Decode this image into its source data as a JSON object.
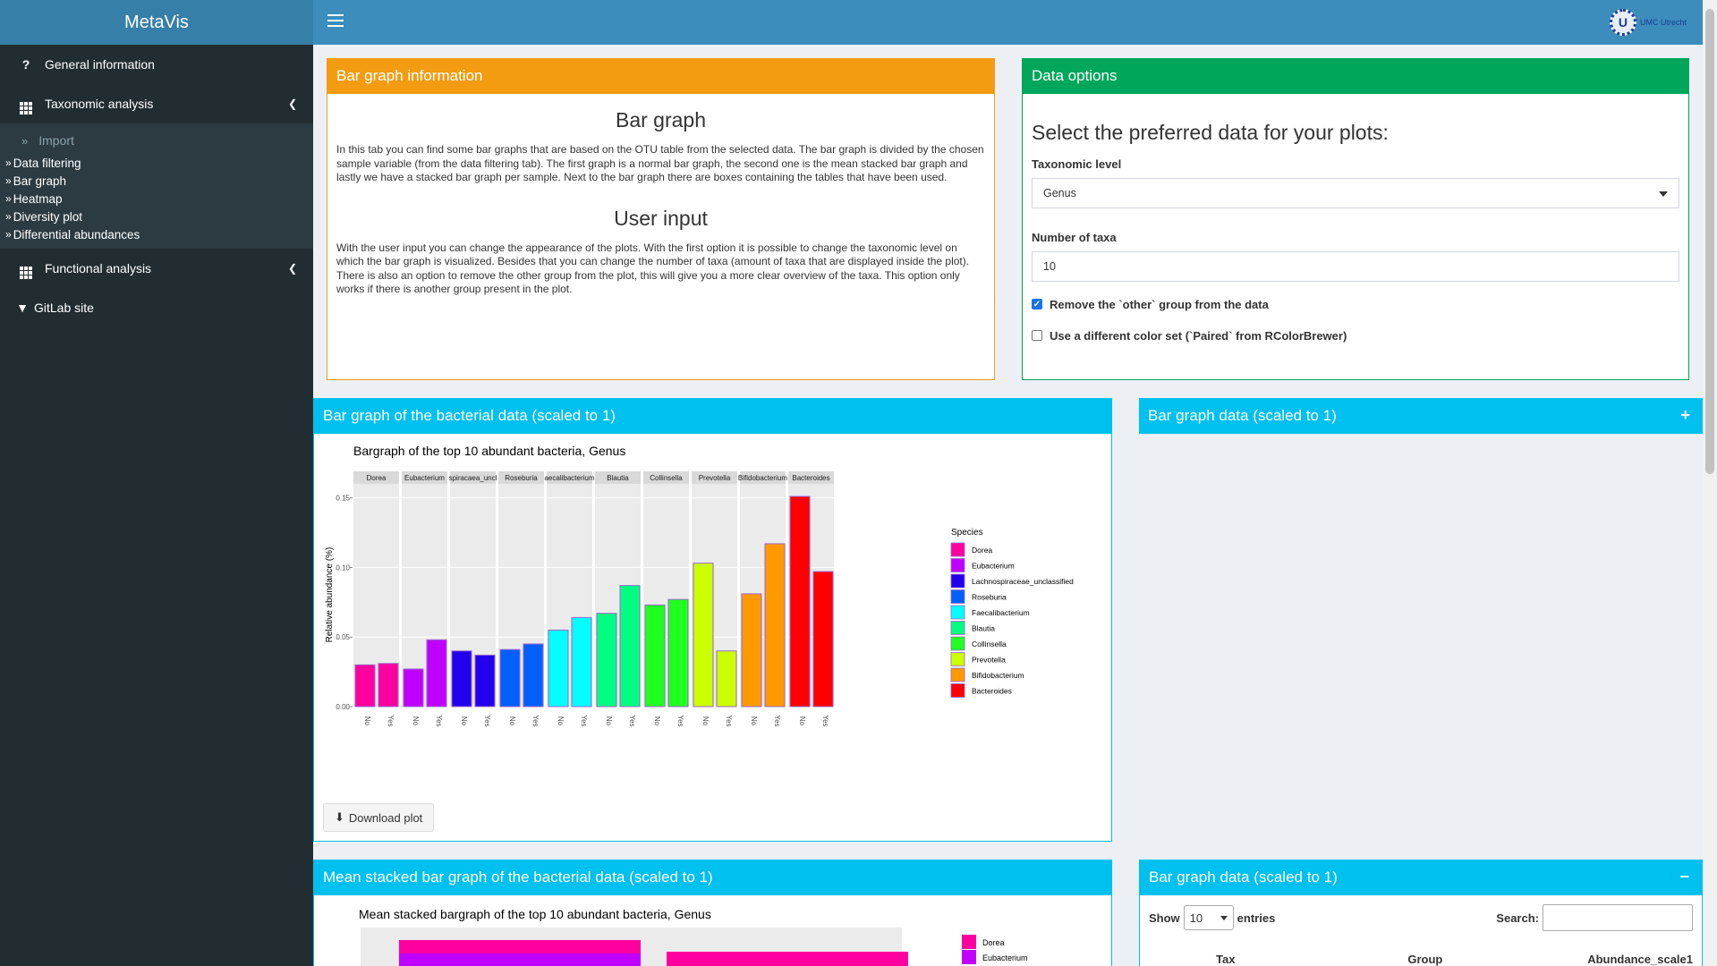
{
  "app": {
    "title": "MetaVis",
    "brand_text": "UMC Utrecht",
    "brand_letter": "U"
  },
  "sidebar": {
    "general": "General information",
    "taxonomic": "Taxonomic analysis",
    "sub_items": [
      "Import",
      "Data filtering",
      "Bar graph",
      "Heatmap",
      "Diversity plot",
      "Differential abundances"
    ],
    "functional": "Functional analysis",
    "gitlab": "GitLab site"
  },
  "info_box": {
    "title": "Bar graph information",
    "h1": "Bar graph",
    "p1": "In this tab you can find some bar graphs that are based on the OTU table from the selected data. The bar graph is divided by the chosen sample variable (from the data filtering tab). The first graph is a normal bar graph, the second one is the mean stacked bar graph and lastly we have a stacked bar graph per sample. Next to the bar graph there are boxes containing the tables that have been used.",
    "h2": "User input",
    "p2": "With the user input you can change the appearance of the plots. With the first option it is possible to change the taxonomic level on which the bar graph is visualized. Besides that you can change the number of taxa (amount of taxa that are displayed inside the plot). There is also an option to remove the other group from the plot, this will give you a more clear overview of the taxa. This option only works if there is another group present in the plot."
  },
  "data_options": {
    "title": "Data options",
    "heading": "Select the preferred data for your plots:",
    "tax_label": "Taxonomic level",
    "tax_value": "Genus",
    "num_label": "Number of taxa",
    "num_value": "10",
    "chk1_label": "Remove the `other` group from the data",
    "chk1_checked": true,
    "chk2_label": "Use a different color set (`Paired` from RColorBrewer)",
    "chk2_checked": false
  },
  "bar_box": {
    "title": "Bar graph of the bacterial data (scaled to 1)",
    "download": "Download plot"
  },
  "bar_data_box1": {
    "title": "Bar graph data (scaled to 1)",
    "tool": "+"
  },
  "mean_box": {
    "title": "Mean stacked bar graph of the bacterial data (scaled to 1)",
    "plot_title": "Mean stacked bargraph of the top 10 abundant bacteria, Genus"
  },
  "bar_data_box2": {
    "title": "Bar graph data (scaled to 1)",
    "tool": "−",
    "show": "Show",
    "entries_value": "10",
    "entries": "entries",
    "search": "Search:",
    "columns": [
      "Tax",
      "Group",
      "Abundance_scale1"
    ]
  },
  "chart_data": {
    "type": "bar",
    "title": "Bargraph of the top 10 abundant bacteria, Genus",
    "ylabel": "Relative abundance (%)",
    "xlabel": "",
    "ylim": [
      0,
      0.16
    ],
    "yticks": [
      "0.00",
      "0.05",
      "0.10",
      "0.15"
    ],
    "ytick_values": [
      0,
      0.05,
      0.1,
      0.15
    ],
    "groups": [
      "No",
      "Yes"
    ],
    "legend_title": "Species",
    "facets": [
      {
        "name": "Dorea",
        "label": "Dorea",
        "color": "#ff00a0",
        "values": [
          0.03,
          0.031
        ]
      },
      {
        "name": "Eubacterium",
        "label": "Eubacterium",
        "color": "#c000ff",
        "values": [
          0.027,
          0.048
        ]
      },
      {
        "name": "Lachnospiraceae_unclassified",
        "label": "spiracaea_uncl",
        "color": "#2200ee",
        "values": [
          0.04,
          0.037
        ]
      },
      {
        "name": "Roseburia",
        "label": "Roseburia",
        "color": "#0060ff",
        "values": [
          0.041,
          0.045
        ]
      },
      {
        "name": "Faecalibacterium",
        "label": "aecalibacterium",
        "color": "#00ffff",
        "values": [
          0.055,
          0.064
        ]
      },
      {
        "name": "Blautia",
        "label": "Blautia",
        "color": "#00ff80",
        "values": [
          0.067,
          0.087
        ]
      },
      {
        "name": "Collinsella",
        "label": "Collinsella",
        "color": "#20ff20",
        "values": [
          0.073,
          0.077
        ]
      },
      {
        "name": "Prevotella",
        "label": "Prevotella",
        "color": "#ccff00",
        "values": [
          0.103,
          0.04
        ]
      },
      {
        "name": "Bifidobacterium",
        "label": "Bifidobacterium",
        "color": "#ff9900",
        "values": [
          0.081,
          0.117
        ]
      },
      {
        "name": "Bacteroides",
        "label": "Bacteroides",
        "color": "#ff0000",
        "values": [
          0.151,
          0.097
        ]
      }
    ]
  },
  "mean_legend": [
    "Dorea",
    "Eubacterium"
  ]
}
